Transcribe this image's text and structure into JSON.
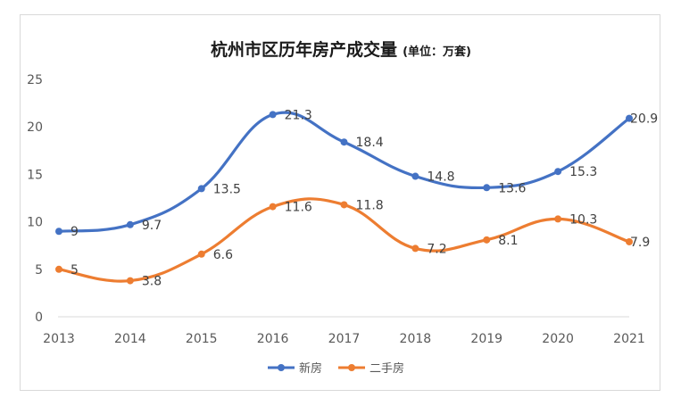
{
  "chart_data": {
    "type": "line",
    "title": "杭州市区历年房产成交量",
    "subtitle": "(单位：万套)",
    "categories": [
      "2013",
      "2014",
      "2015",
      "2016",
      "2017",
      "2018",
      "2019",
      "2020",
      "2021"
    ],
    "series": [
      {
        "name": "新房",
        "color": "#4472C4",
        "values": [
          9,
          9.7,
          13.5,
          21.3,
          18.4,
          14.8,
          13.6,
          15.3,
          20.9
        ],
        "labels": [
          "9",
          "9.7",
          "13.5",
          "21.3",
          "18.4",
          "14.8",
          "13.6",
          "15.3",
          "20.9"
        ]
      },
      {
        "name": "二手房",
        "color": "#ED7D31",
        "values": [
          5,
          3.8,
          6.6,
          11.6,
          11.8,
          7.2,
          8.1,
          10.3,
          7.9
        ],
        "labels": [
          "5",
          "3.8",
          "6.6",
          "11.6",
          "11.8",
          "7.2",
          "8.1",
          "10.3",
          "7.9"
        ]
      }
    ],
    "y_ticks": [
      "0",
      "5",
      "10",
      "15",
      "20",
      "25"
    ],
    "ylim": [
      0,
      25
    ],
    "smooth": true,
    "grid": false,
    "legend": "bottom"
  }
}
